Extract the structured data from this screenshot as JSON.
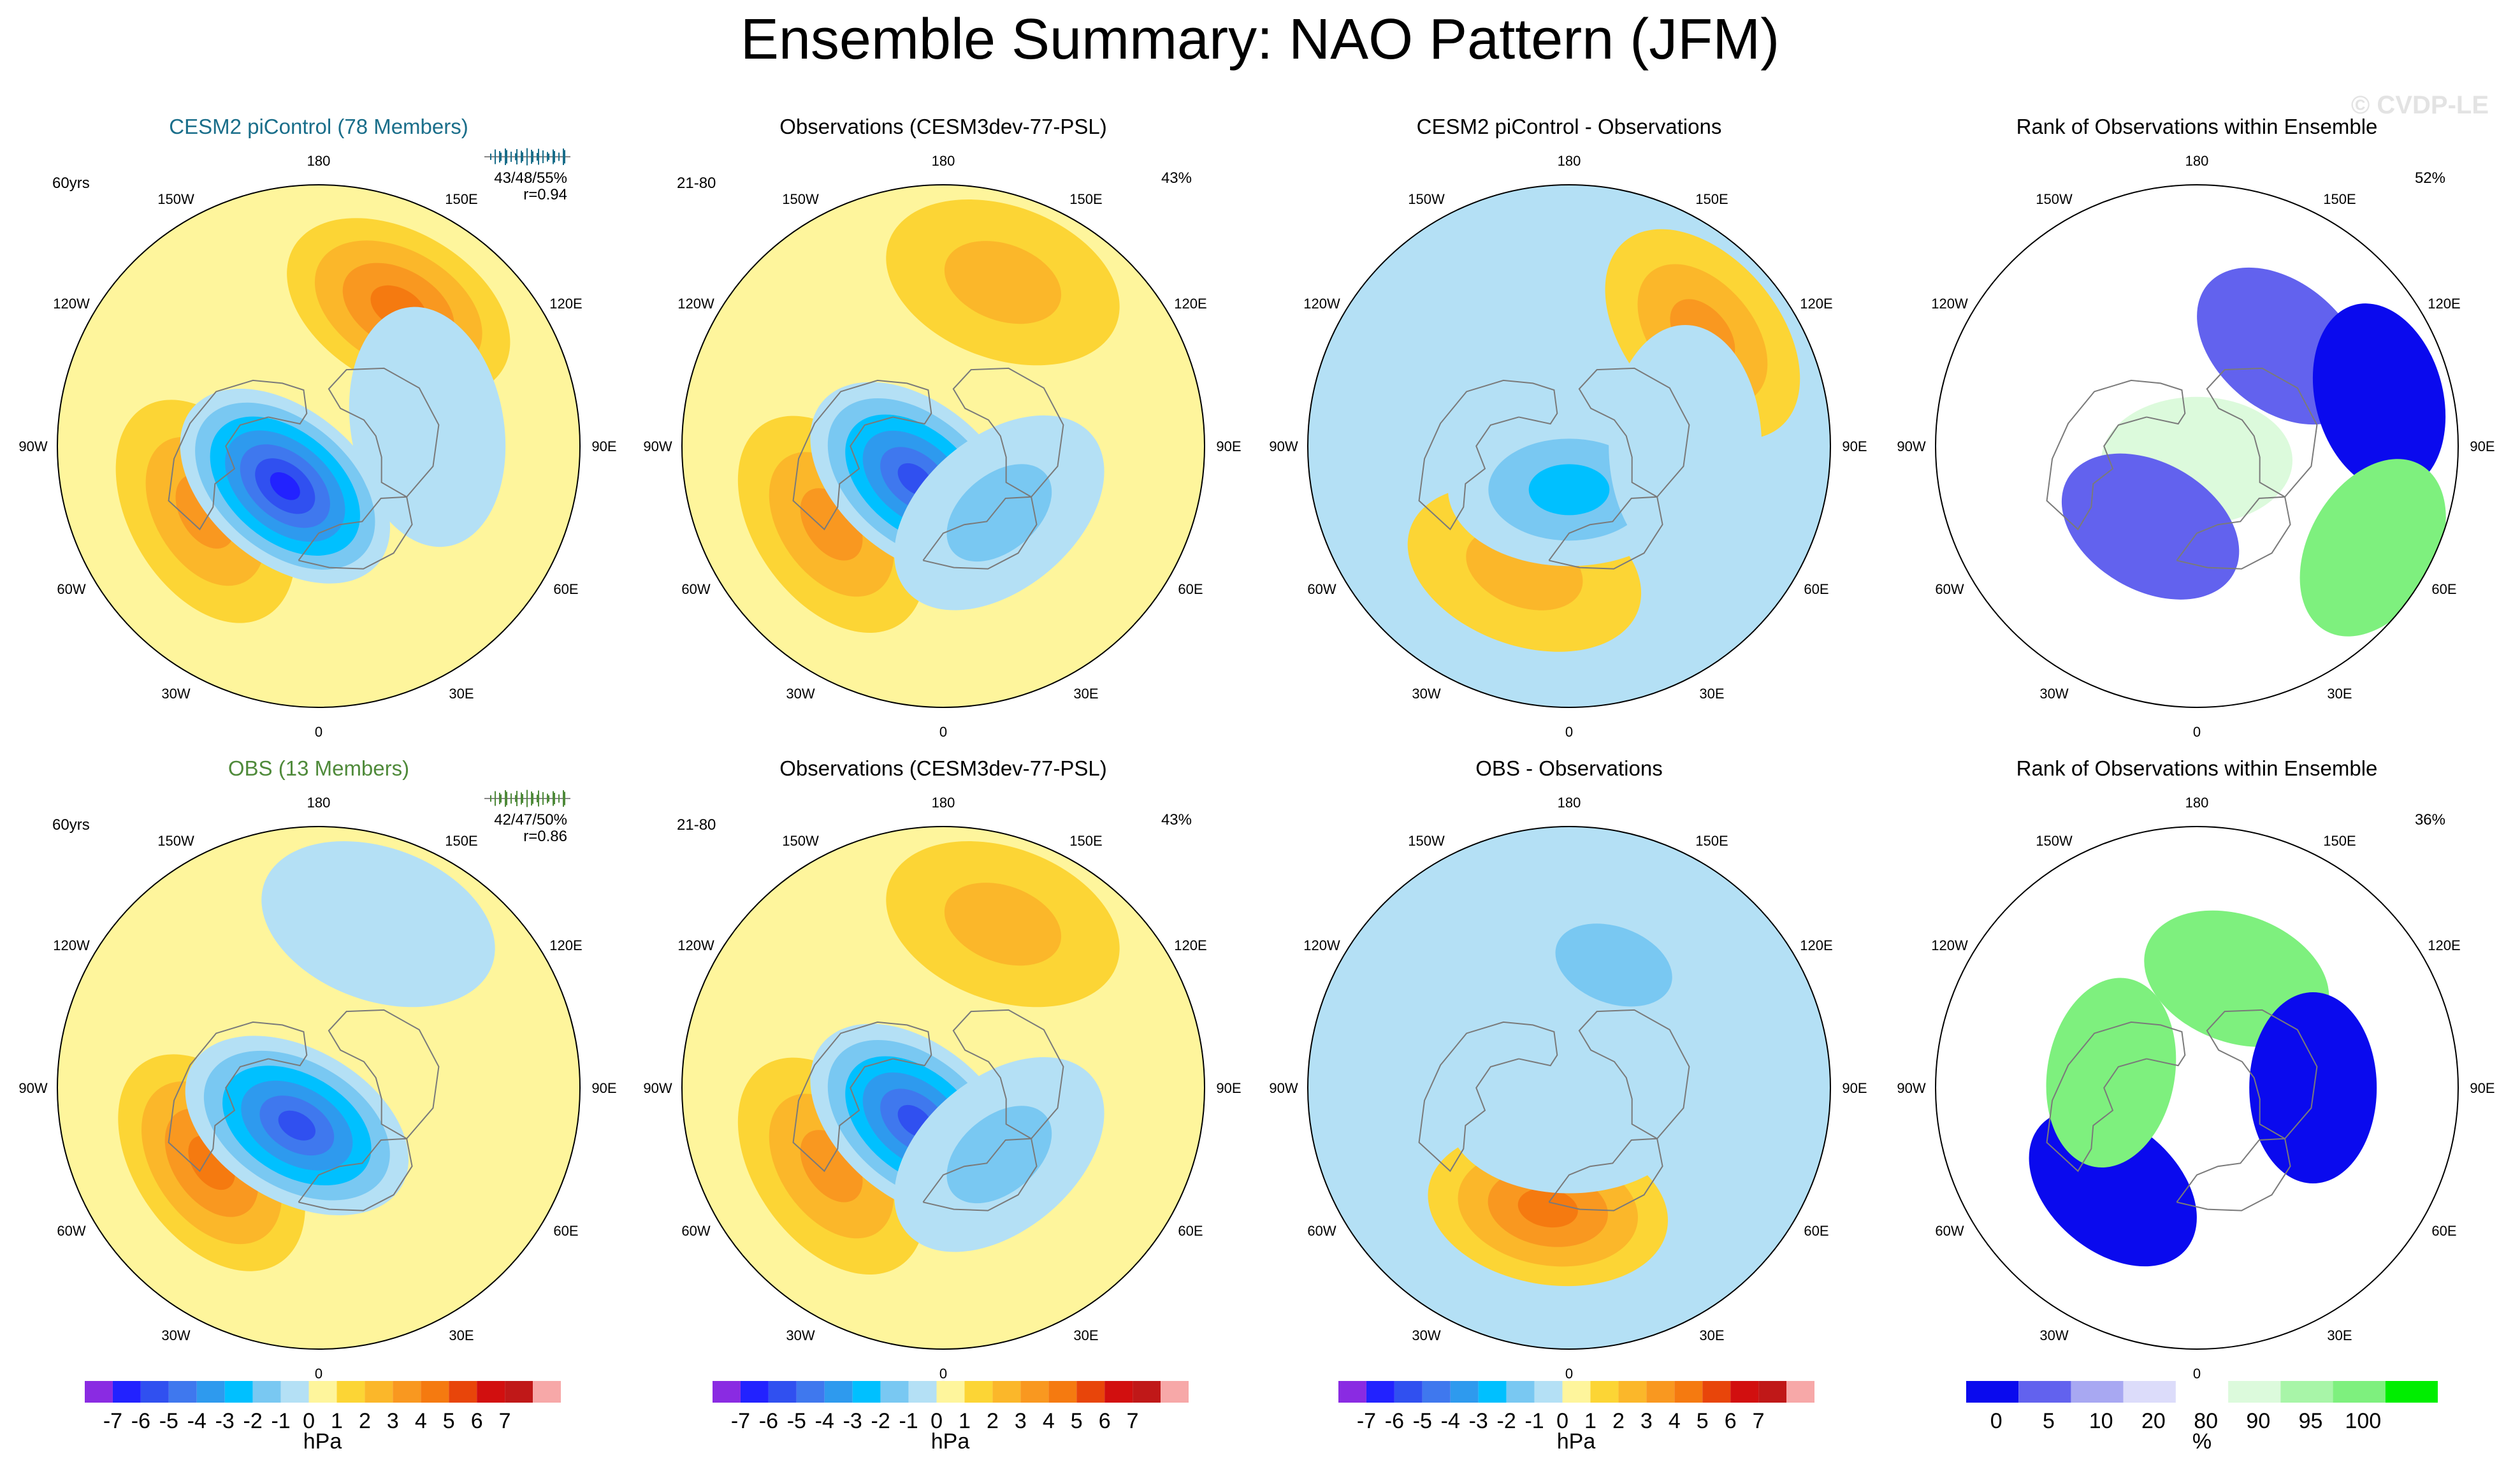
{
  "title": "Ensemble Summary: NAO Pattern (JFM)",
  "watermark": "© CVDP-LE",
  "lon_labels": [
    "180",
    "150E",
    "120E",
    "90E",
    "60E",
    "30E",
    "0",
    "30W",
    "60W",
    "90W",
    "120W",
    "150W"
  ],
  "colors": {
    "ocean_fill": "#fef59c",
    "land_line": "#7a7a7a",
    "ramp": [
      "#8a2be2",
      "#2222ff",
      "#3050f0",
      "#3f78ee",
      "#2e9aee",
      "#00c0ff",
      "#79c8f2",
      "#b4e0f5",
      "#fef59c",
      "#fcd535",
      "#fbb72a",
      "#f99820",
      "#f57a10",
      "#e8450a",
      "#d20f0f",
      "#c01818",
      "#f7a8a8"
    ],
    "rank_ramp": [
      "#0a0aee",
      "#6262ee",
      "#a8a8f2",
      "#dcdcfa",
      "#ffffff",
      "#dcfadc",
      "#a8f5a8",
      "#7ef07e",
      "#00ee00"
    ]
  },
  "chart_data": [
    {
      "type": "heatmap",
      "id": "r1c1",
      "title": "CESM2 piControl (78 Members)",
      "title_color": "#1a6e8a",
      "top_left_label": "60yrs",
      "top_right_lines": [
        "43/48/55%",
        "r=0.94"
      ],
      "spread_bar": true,
      "units": "hPa",
      "features": [
        {
          "lon": 150,
          "colat": 55,
          "value": 4
        },
        {
          "lon": -60,
          "colat": 45,
          "value": 3
        },
        {
          "lon": -40,
          "colat": 18,
          "value": -7
        },
        {
          "lon": 100,
          "colat": 38,
          "value": -1
        }
      ]
    },
    {
      "type": "heatmap",
      "id": "r1c2",
      "title": "Observations (CESM3dev-77-PSL)",
      "top_left_label": "21-80",
      "top_right_lines": [
        "43%"
      ],
      "units": "hPa",
      "features": [
        {
          "lon": 160,
          "colat": 60,
          "value": 2
        },
        {
          "lon": -55,
          "colat": 47,
          "value": 3
        },
        {
          "lon": -40,
          "colat": 15,
          "value": -6
        },
        {
          "lon": 40,
          "colat": 30,
          "value": -2
        }
      ]
    },
    {
      "type": "heatmap",
      "id": "r1c3",
      "title": "CESM2 piControl - Observations",
      "units": "hPa",
      "features": [
        {
          "lon": 130,
          "colat": 60,
          "value": 3
        },
        {
          "lon": -20,
          "colat": 45,
          "value": 2
        },
        {
          "lon": 0,
          "colat": 15,
          "value": -3
        },
        {
          "lon": 90,
          "colat": 40,
          "value": -1
        }
      ]
    },
    {
      "type": "heatmap",
      "id": "r1c4",
      "title": "Rank of Observations within Ensemble",
      "top_right_lines": [
        "52%"
      ],
      "units": "%",
      "rank": true,
      "features": [
        {
          "lon": 0,
          "colat": 5,
          "value": 90
        },
        {
          "lon": -30,
          "colat": 32,
          "value": 5
        },
        {
          "lon": 140,
          "colat": 45,
          "value": 5
        },
        {
          "lon": 105,
          "colat": 65,
          "value": 0
        },
        {
          "lon": 60,
          "colat": 70,
          "value": 100
        }
      ]
    },
    {
      "type": "heatmap",
      "id": "r2c1",
      "title": "OBS (13 Members)",
      "title_color": "#4f8a3a",
      "top_left_label": "60yrs",
      "top_right_lines": [
        "42/47/50%",
        "r=0.86"
      ],
      "spread_bar": true,
      "units": "hPa",
      "features": [
        {
          "lon": -55,
          "colat": 45,
          "value": 4
        },
        {
          "lon": -30,
          "colat": 15,
          "value": -6
        },
        {
          "lon": 160,
          "colat": 60,
          "value": -1
        }
      ]
    },
    {
      "type": "heatmap",
      "id": "r2c2",
      "title": "Observations (CESM3dev-77-PSL)",
      "top_left_label": "21-80",
      "top_right_lines": [
        "43%"
      ],
      "units": "hPa",
      "features": [
        {
          "lon": 160,
          "colat": 60,
          "value": 2
        },
        {
          "lon": -55,
          "colat": 47,
          "value": 3
        },
        {
          "lon": -40,
          "colat": 15,
          "value": -6
        },
        {
          "lon": 40,
          "colat": 30,
          "value": -2
        }
      ]
    },
    {
      "type": "heatmap",
      "id": "r2c3",
      "title": "OBS - Observations",
      "units": "hPa",
      "features": [
        {
          "lon": -10,
          "colat": 42,
          "value": 4
        },
        {
          "lon": 160,
          "colat": 45,
          "value": -2
        },
        {
          "lon": 0,
          "colat": 10,
          "value": -1
        }
      ]
    },
    {
      "type": "heatmap",
      "id": "r2c4",
      "title": "Rank of Observations within Ensemble",
      "top_right_lines": [
        "36%"
      ],
      "units": "%",
      "rank": true,
      "features": [
        {
          "lon": -40,
          "colat": 45,
          "value": 0
        },
        {
          "lon": 160,
          "colat": 40,
          "value": 100
        },
        {
          "lon": 90,
          "colat": 40,
          "value": 0
        },
        {
          "lon": -100,
          "colat": 30,
          "value": 100
        }
      ]
    }
  ],
  "colorbars": [
    {
      "id": "cb1",
      "ticks": [
        "-7",
        "-6",
        "-5",
        "-4",
        "-3",
        "-2",
        "-1",
        "0",
        "1",
        "2",
        "3",
        "4",
        "5",
        "6",
        "7"
      ],
      "label": "hPa"
    },
    {
      "id": "cb2",
      "ticks": [
        "-7",
        "-6",
        "-5",
        "-4",
        "-3",
        "-2",
        "-1",
        "0",
        "1",
        "2",
        "3",
        "4",
        "5",
        "6",
        "7"
      ],
      "label": "hPa"
    },
    {
      "id": "cb3",
      "ticks": [
        "-7",
        "-6",
        "-5",
        "-4",
        "-3",
        "-2",
        "-1",
        "0",
        "1",
        "2",
        "3",
        "4",
        "5",
        "6",
        "7"
      ],
      "label": "hPa"
    },
    {
      "id": "cb4",
      "ticks": [
        "0",
        "5",
        "10",
        "20",
        "80",
        "90",
        "95",
        "100"
      ],
      "label": "%"
    }
  ]
}
